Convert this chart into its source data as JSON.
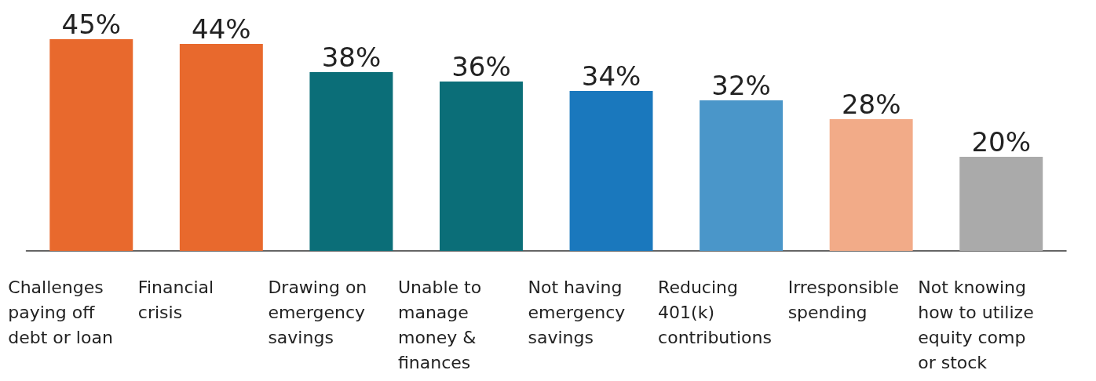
{
  "chart_data": {
    "type": "bar",
    "categories": [
      "Challenges paying off debt or loan",
      "Financial crisis",
      "Drawing on emergency savings",
      "Unable to manage money & finances",
      "Not having emergency savings",
      "Reducing 401(k) contributions",
      "Irresponsible spending",
      "Not knowing how to utilize equity comp or stock"
    ],
    "values": [
      45,
      44,
      38,
      36,
      34,
      32,
      28,
      20
    ],
    "colors": [
      "#e8692d",
      "#e8692d",
      "#0b6e78",
      "#0b6e78",
      "#1a78bd",
      "#4a96c9",
      "#f2ab88",
      "#aaaaaa"
    ],
    "value_labels": [
      "45%",
      "44%",
      "38%",
      "36%",
      "34%",
      "32%",
      "28%",
      "20%"
    ]
  }
}
